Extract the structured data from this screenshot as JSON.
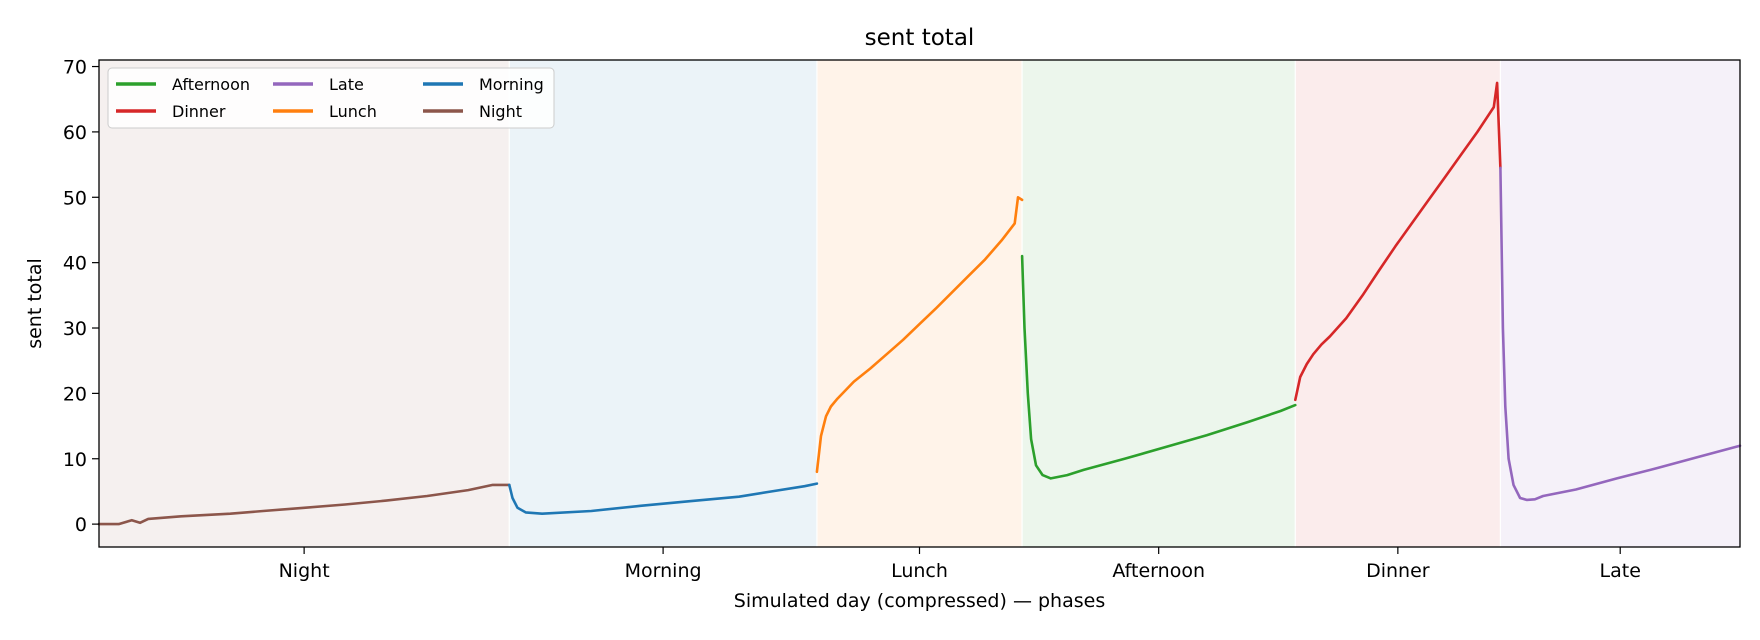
{
  "chart_data": {
    "type": "line",
    "title": "sent total",
    "xlabel": "Simulated day (compressed) — phases",
    "ylabel": "sent total",
    "xlim": [
      0,
      1
    ],
    "ylim": [
      -3.5,
      71
    ],
    "yticks": [
      0,
      10,
      20,
      30,
      40,
      50,
      60,
      70
    ],
    "grid": false,
    "legend_position": "top-left",
    "legend_columns": 3,
    "phases": [
      {
        "name": "Night",
        "start": 0.0,
        "end": 0.25,
        "band_color": "#8c564b"
      },
      {
        "name": "Morning",
        "start": 0.25,
        "end": 0.4375,
        "band_color": "#1f77b4"
      },
      {
        "name": "Lunch",
        "start": 0.4375,
        "end": 0.5625,
        "band_color": "#ff7f0e"
      },
      {
        "name": "Afternoon",
        "start": 0.5625,
        "end": 0.729,
        "band_color": "#2ca02c"
      },
      {
        "name": "Dinner",
        "start": 0.729,
        "end": 0.854,
        "band_color": "#d62728"
      },
      {
        "name": "Late",
        "start": 0.854,
        "end": 1.0,
        "band_color": "#9467bd"
      }
    ],
    "legend": [
      {
        "name": "Afternoon",
        "color": "#2ca02c"
      },
      {
        "name": "Dinner",
        "color": "#d62728"
      },
      {
        "name": "Late",
        "color": "#9467bd"
      },
      {
        "name": "Lunch",
        "color": "#ff7f0e"
      },
      {
        "name": "Morning",
        "color": "#1f77b4"
      },
      {
        "name": "Night",
        "color": "#8c564b"
      }
    ],
    "series": [
      {
        "name": "Night",
        "color": "#8c564b",
        "x": [
          0.0,
          0.012,
          0.02,
          0.025,
          0.03,
          0.05,
          0.08,
          0.1,
          0.125,
          0.15,
          0.175,
          0.2,
          0.225,
          0.24,
          0.25
        ],
        "y": [
          0.0,
          0.0,
          0.6,
          0.2,
          0.8,
          1.2,
          1.6,
          2.0,
          2.5,
          3.0,
          3.6,
          4.3,
          5.2,
          6.0,
          6.0
        ]
      },
      {
        "name": "Morning",
        "color": "#1f77b4",
        "x": [
          0.25,
          0.252,
          0.255,
          0.26,
          0.27,
          0.3,
          0.33,
          0.36,
          0.39,
          0.41,
          0.43,
          0.4375
        ],
        "y": [
          6.0,
          4.0,
          2.5,
          1.8,
          1.6,
          2.0,
          2.8,
          3.5,
          4.2,
          5.0,
          5.8,
          6.2
        ]
      },
      {
        "name": "Lunch",
        "color": "#ff7f0e",
        "x": [
          0.4375,
          0.44,
          0.443,
          0.446,
          0.45,
          0.455,
          0.46,
          0.47,
          0.48,
          0.49,
          0.5,
          0.51,
          0.52,
          0.53,
          0.54,
          0.55,
          0.558,
          0.56,
          0.5625
        ],
        "y": [
          8.0,
          13.5,
          16.5,
          18.0,
          19.2,
          20.5,
          21.8,
          23.8,
          26.0,
          28.2,
          30.6,
          33.0,
          35.5,
          38.0,
          40.5,
          43.4,
          46.0,
          50.0,
          49.6
        ]
      },
      {
        "name": "Afternoon",
        "color": "#2ca02c",
        "x": [
          0.5625,
          0.564,
          0.566,
          0.568,
          0.571,
          0.575,
          0.58,
          0.59,
          0.6,
          0.625,
          0.65,
          0.675,
          0.7,
          0.72,
          0.729
        ],
        "y": [
          41.0,
          30.0,
          20.0,
          13.0,
          9.0,
          7.5,
          7.0,
          7.5,
          8.3,
          10.0,
          11.8,
          13.6,
          15.6,
          17.3,
          18.2
        ]
      },
      {
        "name": "Dinner",
        "color": "#d62728",
        "x": [
          0.729,
          0.732,
          0.736,
          0.74,
          0.745,
          0.75,
          0.76,
          0.77,
          0.78,
          0.79,
          0.8,
          0.81,
          0.82,
          0.83,
          0.84,
          0.85,
          0.852,
          0.854
        ],
        "y": [
          19.0,
          22.5,
          24.5,
          26.0,
          27.5,
          28.7,
          31.5,
          35.0,
          38.8,
          42.5,
          46.0,
          49.5,
          53.0,
          56.5,
          60.0,
          63.8,
          67.5,
          54.5
        ]
      },
      {
        "name": "Late",
        "color": "#9467bd",
        "x": [
          0.854,
          0.8555,
          0.857,
          0.859,
          0.862,
          0.866,
          0.87,
          0.875,
          0.88,
          0.9,
          0.925,
          0.95,
          0.975,
          1.0
        ],
        "y": [
          54.5,
          30.0,
          18.0,
          10.0,
          6.0,
          4.0,
          3.7,
          3.8,
          4.3,
          5.3,
          7.0,
          8.6,
          10.3,
          12.0
        ]
      }
    ]
  }
}
